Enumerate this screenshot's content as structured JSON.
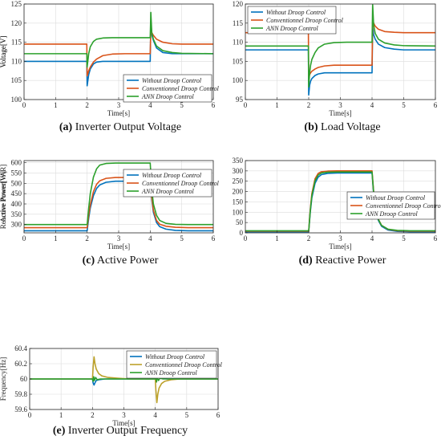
{
  "chart_data": [
    {
      "id": "a",
      "type": "line",
      "caption_letter": "(a)",
      "caption_text": "Inverter Output Voltage",
      "xlabel": "Time[s]",
      "ylabel": "Voltage[V]",
      "xlim": [
        0,
        6
      ],
      "ylim": [
        100,
        125
      ],
      "xticks": [
        0,
        1,
        2,
        3,
        4,
        5,
        6
      ],
      "yticks": [
        100,
        105,
        110,
        115,
        120,
        125
      ],
      "grid": true,
      "legend_position": "bottom-right",
      "series": [
        {
          "name": "Without Droop Control",
          "color": "#0072BD",
          "x": [
            0,
            1.99,
            2.0,
            2.05,
            2.1,
            2.2,
            2.3,
            2.5,
            2.8,
            3.2,
            3.99,
            4.0,
            4.02,
            4.05,
            4.1,
            4.2,
            4.4,
            4.7,
            5.0,
            6.0
          ],
          "y": [
            110,
            110,
            103.6,
            106.5,
            108,
            109.3,
            109.8,
            110,
            110,
            110,
            110,
            110,
            120.5,
            117,
            115.5,
            113.5,
            112.3,
            112,
            112,
            112
          ]
        },
        {
          "name": "Conventionnel Droop Control",
          "color": "#D95319",
          "x": [
            0,
            1.99,
            2.0,
            2.05,
            2.1,
            2.2,
            2.3,
            2.5,
            2.8,
            3.2,
            3.99,
            4.0,
            4.02,
            4.05,
            4.1,
            4.2,
            4.4,
            4.7,
            5.0,
            6.0
          ],
          "y": [
            114.5,
            114.5,
            106.2,
            107.5,
            108.5,
            109.8,
            110.6,
            111.5,
            111.9,
            112,
            112,
            112,
            118.5,
            117.5,
            116.8,
            115.8,
            115,
            114.6,
            114.5,
            114.5
          ]
        },
        {
          "name": "ANN Droop Control",
          "color": "#2CA02C",
          "x": [
            0,
            1.99,
            2.0,
            2.05,
            2.1,
            2.2,
            2.3,
            2.5,
            2.8,
            3.2,
            3.99,
            4.0,
            4.02,
            4.05,
            4.1,
            4.2,
            4.4,
            4.7,
            5.0,
            6.0
          ],
          "y": [
            112,
            112,
            108.5,
            112,
            113.8,
            115.2,
            115.8,
            116.1,
            116.2,
            116.2,
            116.2,
            116.2,
            122.8,
            117.5,
            115.8,
            114,
            112.8,
            112.3,
            112.1,
            112
          ]
        }
      ]
    },
    {
      "id": "b",
      "type": "line",
      "caption_letter": "(b)",
      "caption_text": "Load Voltage",
      "xlabel": "Time[s]",
      "ylabel": "Voltage[V]",
      "xlim": [
        0,
        6
      ],
      "ylim": [
        95,
        120
      ],
      "xticks": [
        0,
        1,
        2,
        3,
        4,
        5,
        6
      ],
      "yticks": [
        95,
        100,
        105,
        110,
        115,
        120
      ],
      "grid": true,
      "legend_position": "top-left",
      "series": [
        {
          "name": "Without Droop Control",
          "color": "#0072BD",
          "x": [
            0,
            1.99,
            2.0,
            2.03,
            2.06,
            2.1,
            2.2,
            2.3,
            2.5,
            2.8,
            3.2,
            3.99,
            4.0,
            4.02,
            4.05,
            4.1,
            4.2,
            4.4,
            4.7,
            5.0,
            6.0
          ],
          "y": [
            108,
            108,
            96.2,
            98.8,
            99.8,
            100.5,
            101.3,
            101.7,
            102,
            102,
            102,
            102,
            102,
            114,
            112,
            110.8,
            109.5,
            108.6,
            108.2,
            108,
            108
          ]
        },
        {
          "name": "Conventionnel Droop Control",
          "color": "#D95319",
          "x": [
            0,
            1.99,
            2.0,
            2.03,
            2.06,
            2.1,
            2.2,
            2.3,
            2.5,
            2.8,
            3.2,
            3.99,
            4.0,
            4.02,
            4.05,
            4.1,
            4.2,
            4.4,
            4.7,
            5.0,
            6.0
          ],
          "y": [
            112.5,
            112.5,
            101,
            101.5,
            102,
            102.4,
            103,
            103.4,
            103.8,
            104,
            104,
            104,
            104,
            116,
            115,
            114.2,
            113.4,
            112.8,
            112.6,
            112.5,
            112.5
          ]
        },
        {
          "name": "ANN Droop Control",
          "color": "#2CA02C",
          "x": [
            0,
            1.99,
            2.0,
            2.03,
            2.06,
            2.1,
            2.2,
            2.3,
            2.5,
            2.8,
            3.2,
            3.99,
            4.0,
            4.02,
            4.05,
            4.1,
            4.2,
            4.4,
            4.7,
            5.0,
            6.0
          ],
          "y": [
            109,
            109,
            98.3,
            102,
            104,
            105.5,
            107.3,
            108.5,
            109.5,
            109.9,
            110,
            110,
            110,
            119.8,
            114.5,
            112.3,
            110.8,
            109.8,
            109.3,
            109.1,
            109
          ]
        }
      ]
    },
    {
      "id": "c",
      "type": "line",
      "caption_letter": "(c)",
      "caption_text": "Active Power",
      "xlabel": "Time[s]",
      "ylabel": "Active Power[W]",
      "xlim": [
        0,
        6
      ],
      "ylim": [
        260,
        610
      ],
      "xticks": [
        0,
        1,
        2,
        3,
        4,
        5,
        6
      ],
      "yticks": [
        300,
        350,
        400,
        450,
        500,
        550,
        600
      ],
      "grid": true,
      "legend_position": "top-right",
      "series": [
        {
          "name": "Without Droop Control",
          "color": "#0072BD",
          "x": [
            0,
            2.0,
            2.05,
            2.1,
            2.2,
            2.3,
            2.4,
            2.6,
            2.9,
            3.3,
            4.0,
            4.05,
            4.1,
            4.2,
            4.3,
            4.5,
            4.8,
            5.2,
            6.0
          ],
          "y": [
            270,
            270,
            330,
            380,
            440,
            475,
            492,
            505,
            510,
            510,
            510,
            420,
            360,
            310,
            290,
            278,
            272,
            270,
            270
          ]
        },
        {
          "name": "Conventionnel Droop Control",
          "color": "#D95319",
          "x": [
            0,
            2.0,
            2.05,
            2.1,
            2.2,
            2.3,
            2.4,
            2.6,
            2.9,
            3.3,
            4.0,
            4.05,
            4.1,
            4.2,
            4.3,
            4.5,
            4.8,
            5.2,
            6.0
          ],
          "y": [
            285,
            285,
            345,
            395,
            460,
            495,
            512,
            524,
            528,
            528,
            528,
            430,
            370,
            320,
            302,
            292,
            287,
            285,
            285
          ]
        },
        {
          "name": "ANN Droop Control",
          "color": "#2CA02C",
          "x": [
            0,
            2.0,
            2.05,
            2.1,
            2.2,
            2.3,
            2.4,
            2.6,
            2.9,
            3.3,
            4.0,
            4.05,
            4.1,
            4.2,
            4.3,
            4.5,
            4.8,
            5.2,
            6.0
          ],
          "y": [
            300,
            300,
            380,
            450,
            530,
            570,
            588,
            596,
            598,
            598,
            598,
            470,
            400,
            345,
            320,
            306,
            301,
            300,
            300
          ]
        }
      ]
    },
    {
      "id": "d",
      "type": "line",
      "caption_letter": "(d)",
      "caption_text": "Reactive Power",
      "xlabel": "Time[s]",
      "ylabel": "Reactive Power[VAR]",
      "xlim": [
        0,
        6
      ],
      "ylim": [
        0,
        350
      ],
      "xticks": [
        0,
        1,
        2,
        3,
        4,
        5,
        6
      ],
      "yticks": [
        0,
        50,
        100,
        150,
        200,
        250,
        300,
        350
      ],
      "grid": true,
      "legend_position": "center-right",
      "series": [
        {
          "name": "Without Droop Control",
          "color": "#0072BD",
          "x": [
            0,
            2.0,
            2.05,
            2.1,
            2.2,
            2.3,
            2.4,
            2.6,
            2.9,
            3.3,
            4.0,
            4.05,
            4.1,
            4.2,
            4.3,
            4.5,
            4.8,
            5.2,
            6.0
          ],
          "y": [
            5,
            5,
            100,
            170,
            240,
            270,
            282,
            288,
            290,
            290,
            290,
            190,
            120,
            60,
            32,
            14,
            7,
            5,
            5
          ]
        },
        {
          "name": "Conventionnel Droop Control",
          "color": "#D95319",
          "x": [
            0,
            2.0,
            2.05,
            2.1,
            2.2,
            2.3,
            2.4,
            2.6,
            2.9,
            3.3,
            4.0,
            4.05,
            4.1,
            4.2,
            4.3,
            4.5,
            4.8,
            5.2,
            6.0
          ],
          "y": [
            8,
            8,
            115,
            190,
            262,
            288,
            296,
            299,
            300,
            300,
            300,
            200,
            130,
            66,
            36,
            17,
            10,
            8,
            8
          ]
        },
        {
          "name": "ANN Droop Control",
          "color": "#2CA02C",
          "x": [
            0,
            2.0,
            2.05,
            2.1,
            2.2,
            2.3,
            2.4,
            2.6,
            2.9,
            3.3,
            4.0,
            4.05,
            4.1,
            4.2,
            4.3,
            4.5,
            4.8,
            5.2,
            6.0
          ],
          "y": [
            10,
            10,
            108,
            180,
            252,
            280,
            290,
            294,
            295,
            295,
            295,
            196,
            126,
            64,
            36,
            18,
            12,
            10,
            10
          ]
        }
      ]
    },
    {
      "id": "e",
      "type": "line",
      "caption_letter": "(e)",
      "caption_text": "Inverter Output Frequency",
      "xlabel": "Time[s]",
      "ylabel": "Frequency[Hz]",
      "xlim": [
        0,
        6
      ],
      "ylim": [
        59.6,
        60.4
      ],
      "xticks": [
        0,
        1,
        2,
        3,
        4,
        5,
        6
      ],
      "yticks": [
        59.6,
        59.8,
        60,
        60.2,
        60.4
      ],
      "grid": true,
      "legend_position": "top-right",
      "series": [
        {
          "name": "Without Droop Control",
          "color": "#0072BD",
          "x": [
            0,
            1.0,
            2.0,
            2.02,
            2.05,
            2.08,
            2.12,
            2.2,
            2.4,
            3.0,
            4.0,
            4.02,
            4.05,
            4.08,
            4.12,
            4.2,
            4.4,
            5.0,
            6.0
          ],
          "y": [
            60.0,
            60.0,
            60.0,
            59.95,
            59.92,
            59.95,
            59.98,
            59.99,
            60.0,
            60.0,
            60.0,
            60.05,
            60.08,
            60.05,
            60.02,
            60.01,
            60.0,
            60.0,
            60.0
          ]
        },
        {
          "name": "Conventionnel Droop Control",
          "color": "#BCA12A",
          "x": [
            0,
            1.0,
            2.0,
            2.02,
            2.05,
            2.08,
            2.12,
            2.2,
            2.3,
            2.5,
            2.8,
            3.2,
            4.0,
            4.02,
            4.05,
            4.08,
            4.12,
            4.2,
            4.3,
            4.5,
            4.8,
            5.2,
            6.0
          ],
          "y": [
            60.0,
            60.0,
            60.0,
            60.15,
            60.29,
            60.2,
            60.13,
            60.07,
            60.04,
            60.02,
            60.01,
            60.0,
            60.0,
            59.85,
            59.69,
            59.8,
            59.88,
            59.94,
            59.97,
            59.99,
            60.0,
            60.0,
            60.0
          ]
        },
        {
          "name": "ANN Droop Control",
          "color": "#2CA02C",
          "x": [
            0,
            1.0,
            2.0,
            2.02,
            2.04,
            2.06,
            2.1,
            2.15,
            2.25,
            2.5,
            3.0,
            4.0,
            4.02,
            4.04,
            4.06,
            4.1,
            4.15,
            4.25,
            4.5,
            5.0,
            6.0
          ],
          "y": [
            60.0,
            60.0,
            60.0,
            59.97,
            60.03,
            59.98,
            60.02,
            59.99,
            60.0,
            60.0,
            60.0,
            60.0,
            60.04,
            59.96,
            60.03,
            59.98,
            60.01,
            60.0,
            60.0,
            60.0,
            60.0
          ]
        }
      ]
    }
  ]
}
